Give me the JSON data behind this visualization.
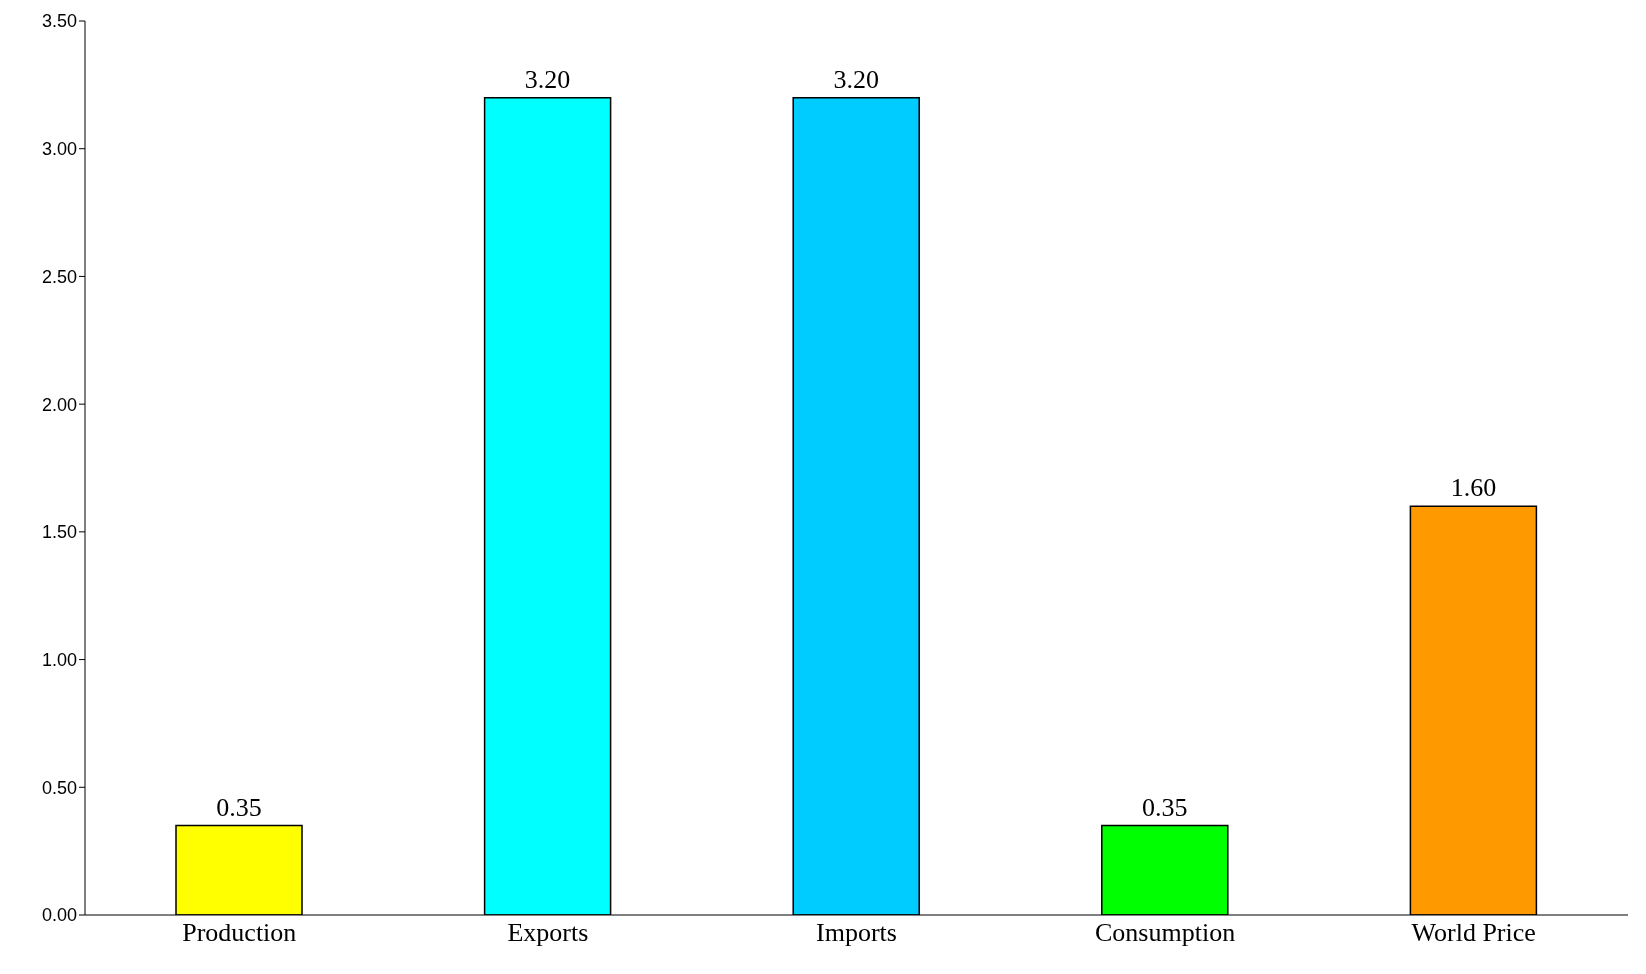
{
  "chart_data": {
    "type": "bar",
    "categories": [
      "Production",
      "Exports",
      "Imports",
      "Consumption",
      "World Price"
    ],
    "values": [
      0.35,
      3.2,
      3.2,
      0.35,
      1.6
    ],
    "colors": [
      "#ffff00",
      "#00ffff",
      "#00ccff",
      "#00ff00",
      "#ff9900"
    ],
    "value_labels": [
      "0.35",
      "3.20",
      "3.20",
      "0.35",
      "1.60"
    ],
    "ylim": [
      0,
      3.5
    ],
    "yticks": [
      {
        "value": 0,
        "label": "0.00"
      },
      {
        "value": 0.5,
        "label": "0.50"
      },
      {
        "value": 1,
        "label": "1.00"
      },
      {
        "value": 1.5,
        "label": "1.50"
      },
      {
        "value": 2,
        "label": "2.00"
      },
      {
        "value": 2.5,
        "label": "2.50"
      },
      {
        "value": 3,
        "label": "3.00"
      },
      {
        "value": 3.5,
        "label": "3.50"
      }
    ],
    "grid": false,
    "legend": false
  }
}
